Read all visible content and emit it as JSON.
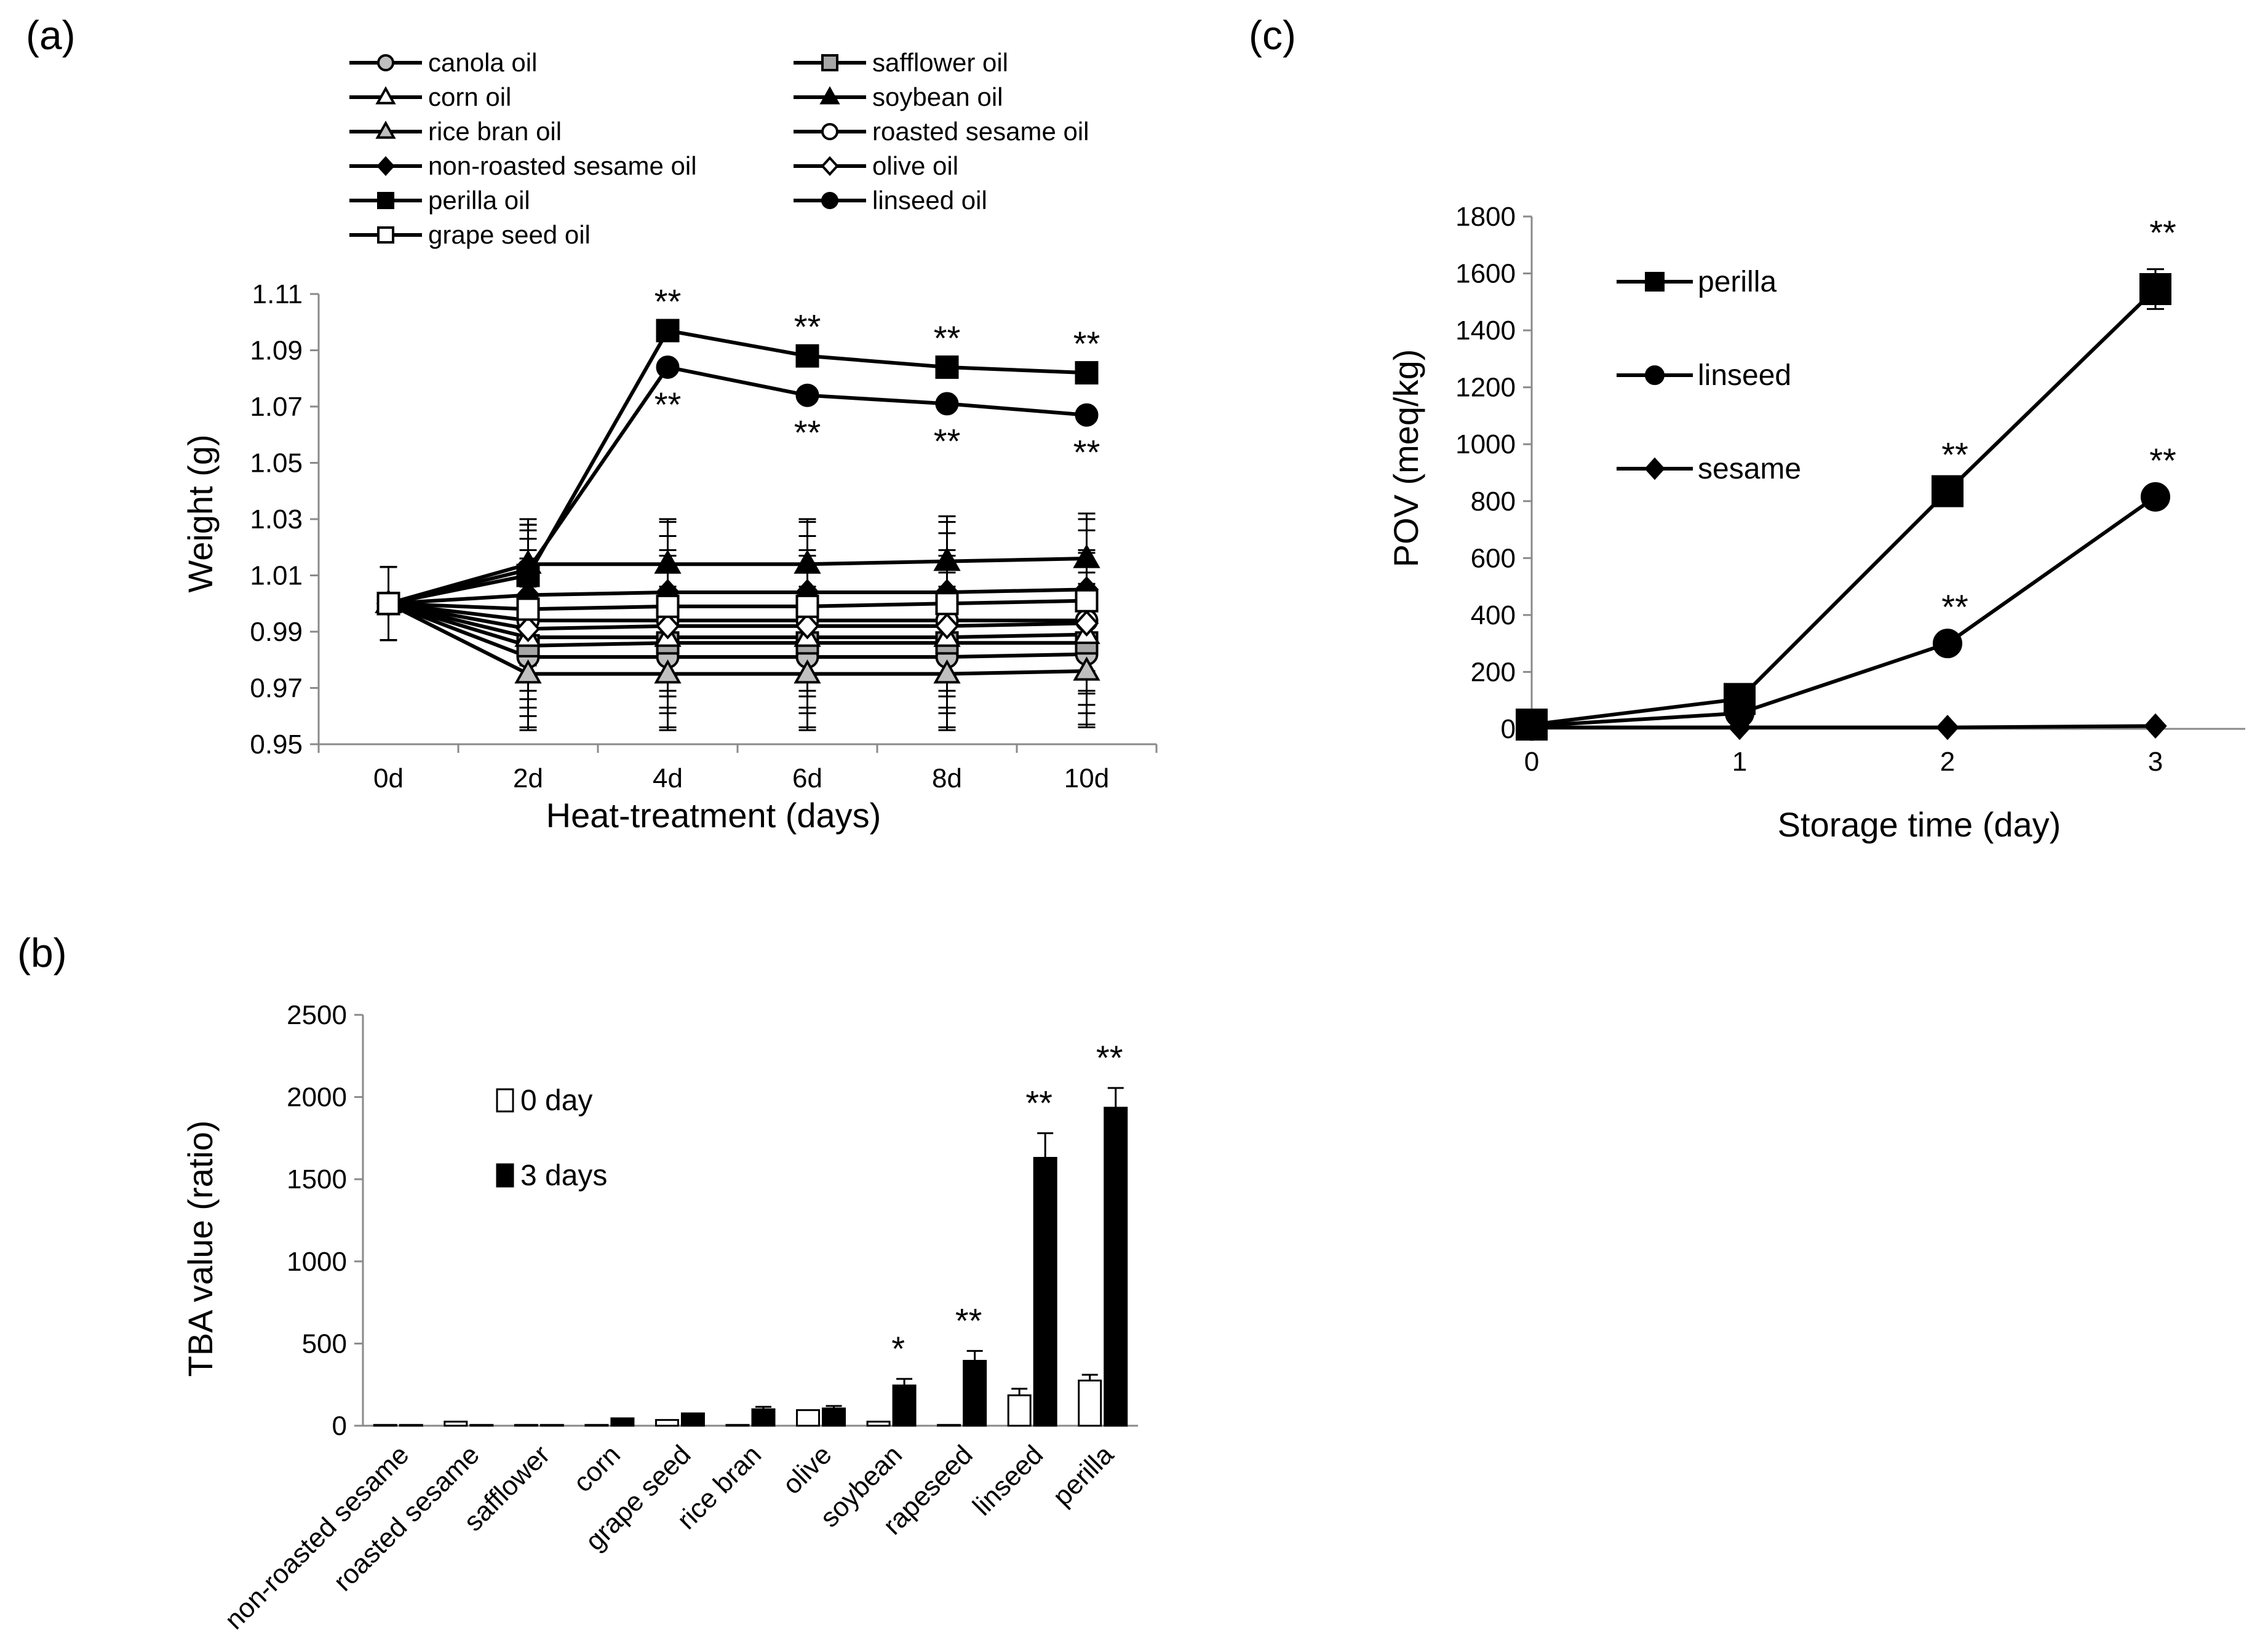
{
  "panels": {
    "a": "(a)",
    "b": "(b)",
    "c": "(c)"
  },
  "chart_data": [
    {
      "id": "a",
      "type": "line",
      "xlabel": "Heat-treatment (days)",
      "ylabel": "Weight (g)",
      "categories": [
        "0d",
        "2d",
        "4d",
        "6d",
        "8d",
        "10d"
      ],
      "yticks": [
        "0.95",
        "0.97",
        "0.99",
        "1.01",
        "1.03",
        "1.05",
        "1.07",
        "1.09",
        "1.11"
      ],
      "ylim": [
        0.95,
        1.11
      ],
      "series": [
        {
          "name": "canola oil",
          "marker": "circle",
          "fill": "#bfbfbf",
          "values": [
            1.0,
            0.981,
            0.981,
            0.981,
            0.981,
            0.982
          ],
          "err": [
            0.013,
            0.025,
            0.025,
            0.025,
            0.025,
            0.025
          ]
        },
        {
          "name": "safflower oil",
          "marker": "square",
          "fill": "#a6a6a6",
          "values": [
            1.0,
            0.985,
            0.986,
            0.986,
            0.986,
            0.986
          ],
          "err": [
            0.013,
            0.025,
            0.025,
            0.025,
            0.025,
            0.025
          ]
        },
        {
          "name": "corn oil",
          "marker": "triangle",
          "fill": "#ffffff",
          "values": [
            1.0,
            0.988,
            0.988,
            0.988,
            0.988,
            0.989
          ],
          "err": [
            0.013,
            0.025,
            0.025,
            0.025,
            0.025,
            0.025
          ]
        },
        {
          "name": "soybean oil",
          "marker": "triangle",
          "fill": "#000000",
          "values": [
            1.0,
            1.014,
            1.014,
            1.014,
            1.015,
            1.016
          ],
          "err": [
            0.013,
            0.016,
            0.016,
            0.016,
            0.016,
            0.016
          ]
        },
        {
          "name": "rice bran oil",
          "marker": "triangle",
          "fill": "#bfbfbf",
          "values": [
            1.0,
            0.975,
            0.975,
            0.975,
            0.975,
            0.976
          ],
          "err": [
            0.013,
            0.02,
            0.02,
            0.02,
            0.02,
            0.02
          ]
        },
        {
          "name": "roasted sesame oil",
          "marker": "circle",
          "fill": "#ffffff",
          "values": [
            1.0,
            0.994,
            0.994,
            0.994,
            0.994,
            0.994
          ],
          "err": [
            0.013,
            0.025,
            0.025,
            0.025,
            0.025,
            0.025
          ]
        },
        {
          "name": "non-roasted sesame oil",
          "marker": "diamond",
          "fill": "#000000",
          "values": [
            1.0,
            1.003,
            1.004,
            1.004,
            1.004,
            1.005
          ],
          "err": [
            0.013,
            0.025,
            0.025,
            0.025,
            0.025,
            0.025
          ]
        },
        {
          "name": "olive oil",
          "marker": "diamond",
          "fill": "#ffffff",
          "values": [
            1.0,
            0.991,
            0.992,
            0.992,
            0.992,
            0.993
          ],
          "err": [
            0.013,
            0.025,
            0.025,
            0.025,
            0.025,
            0.025
          ]
        },
        {
          "name": "perilla oil",
          "marker": "square",
          "fill": "#000000",
          "values": [
            1.0,
            1.01,
            1.097,
            1.088,
            1.084,
            1.082
          ],
          "err": [
            0.013,
            0.016,
            0,
            0,
            0,
            0
          ]
        },
        {
          "name": "linseed oil",
          "marker": "circle",
          "fill": "#000000",
          "values": [
            1.0,
            1.012,
            1.084,
            1.074,
            1.071,
            1.067
          ],
          "err": [
            0.013,
            0.016,
            0,
            0,
            0,
            0
          ]
        },
        {
          "name": "grape seed oil",
          "marker": "square",
          "fill": "#ffffff",
          "values": [
            1.0,
            0.998,
            0.999,
            0.999,
            1.0,
            1.001
          ],
          "err": [
            0.013,
            0.025,
            0.025,
            0.025,
            0.025,
            0.025
          ]
        }
      ],
      "annotations": [
        {
          "text": "**",
          "series": "perilla oil",
          "category": "4d",
          "position": "above"
        },
        {
          "text": "**",
          "series": "perilla oil",
          "category": "6d",
          "position": "above"
        },
        {
          "text": "**",
          "series": "perilla oil",
          "category": "8d",
          "position": "above"
        },
        {
          "text": "**",
          "series": "perilla oil",
          "category": "10d",
          "position": "above"
        },
        {
          "text": "**",
          "series": "linseed oil",
          "category": "4d",
          "position": "below"
        },
        {
          "text": "**",
          "series": "linseed oil",
          "category": "6d",
          "position": "below"
        },
        {
          "text": "**",
          "series": "linseed oil",
          "category": "8d",
          "position": "below"
        },
        {
          "text": "**",
          "series": "linseed oil",
          "category": "10d",
          "position": "below"
        }
      ],
      "legend": "top"
    },
    {
      "id": "b",
      "type": "bar",
      "ylabel": "TBA value (ratio)",
      "categories": [
        "non-roasted sesame",
        "roasted sesame",
        "safflower",
        "corn",
        "grape seed",
        "rice bran",
        "olive",
        "soybean",
        "rapeseed",
        "linseed",
        "perilla"
      ],
      "yticks": [
        "0",
        "500",
        "1000",
        "1500",
        "2000",
        "2500"
      ],
      "ylim": [
        0,
        2500
      ],
      "series": [
        {
          "name": "0 day",
          "fill": "#ffffff",
          "values": [
            5,
            25,
            5,
            5,
            35,
            5,
            95,
            25,
            5,
            185,
            275
          ],
          "err": [
            0,
            0,
            0,
            0,
            0,
            0,
            0,
            0,
            0,
            40,
            35
          ]
        },
        {
          "name": "3 days",
          "fill": "#000000",
          "values": [
            5,
            5,
            5,
            45,
            75,
            100,
            105,
            245,
            395,
            1630,
            1935
          ],
          "err": [
            0,
            0,
            0,
            0,
            0,
            15,
            15,
            40,
            60,
            150,
            120
          ]
        }
      ],
      "annotations": [
        {
          "text": "*",
          "category": "soybean"
        },
        {
          "text": "**",
          "category": "rapeseed"
        },
        {
          "text": "**",
          "category": "linseed"
        },
        {
          "text": "**",
          "category": "perilla"
        }
      ],
      "legend": "top-left"
    },
    {
      "id": "c",
      "type": "line",
      "xlabel": "Storage time (day)",
      "ylabel": "POV (meq/kg)",
      "x": [
        0,
        1,
        2,
        3
      ],
      "xticks": [
        "0",
        "1",
        "2",
        "3"
      ],
      "yticks": [
        "0",
        "200",
        "400",
        "600",
        "800",
        "1000",
        "1200",
        "1400",
        "1600",
        "1800"
      ],
      "ylim": [
        0,
        1800
      ],
      "series": [
        {
          "name": "perilla",
          "marker": "square",
          "values": [
            15,
            105,
            835,
            1545
          ],
          "err": [
            0,
            0,
            0,
            70
          ]
        },
        {
          "name": "linseed",
          "marker": "circle",
          "values": [
            10,
            55,
            300,
            815
          ],
          "err": [
            0,
            0,
            0,
            0
          ]
        },
        {
          "name": "sesame",
          "marker": "diamond",
          "values": [
            5,
            5,
            5,
            10
          ],
          "err": [
            0,
            0,
            0,
            0
          ]
        }
      ],
      "annotations": [
        {
          "text": "**",
          "series": "perilla",
          "x": 2
        },
        {
          "text": "**",
          "series": "perilla",
          "x": 3
        },
        {
          "text": "**",
          "series": "linseed",
          "x": 2
        },
        {
          "text": "**",
          "series": "linseed",
          "x": 3
        }
      ],
      "legend": "left"
    }
  ]
}
